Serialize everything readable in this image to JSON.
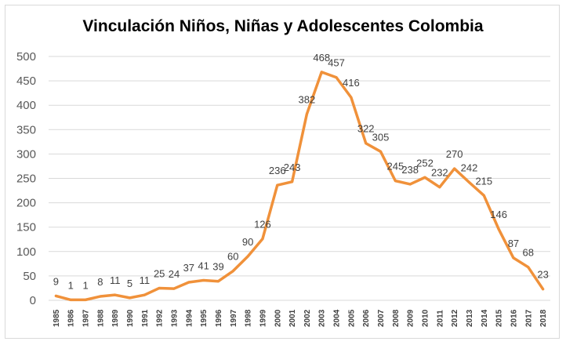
{
  "chart_data": {
    "type": "line",
    "title": "Vinculación Niños, Niñas y Adolescentes Colombia",
    "xlabel": "",
    "ylabel": "",
    "x": [
      "1985",
      "1986",
      "1987",
      "1988",
      "1989",
      "1990",
      "1991",
      "1992",
      "1993",
      "1994",
      "1995",
      "1996",
      "1997",
      "1998",
      "1999",
      "2000",
      "2001",
      "2002",
      "2003",
      "2004",
      "2005",
      "2006",
      "2007",
      "2008",
      "2009",
      "2010",
      "2011",
      "2012",
      "2013",
      "2014",
      "2015",
      "2016",
      "2017",
      "2018"
    ],
    "series": [
      {
        "values": [
          9,
          1,
          1,
          8,
          11,
          5,
          11,
          25,
          24,
          37,
          41,
          39,
          60,
          90,
          126,
          236,
          243,
          382,
          468,
          457,
          416,
          322,
          305,
          245,
          238,
          252,
          232,
          270,
          242,
          215,
          146,
          87,
          68,
          23
        ],
        "color": "#f0913a"
      }
    ],
    "ylim": [
      0,
      500
    ],
    "yticks": [
      0,
      50,
      100,
      150,
      200,
      250,
      300,
      350,
      400,
      450,
      500
    ],
    "grid": true,
    "legend": "none"
  }
}
